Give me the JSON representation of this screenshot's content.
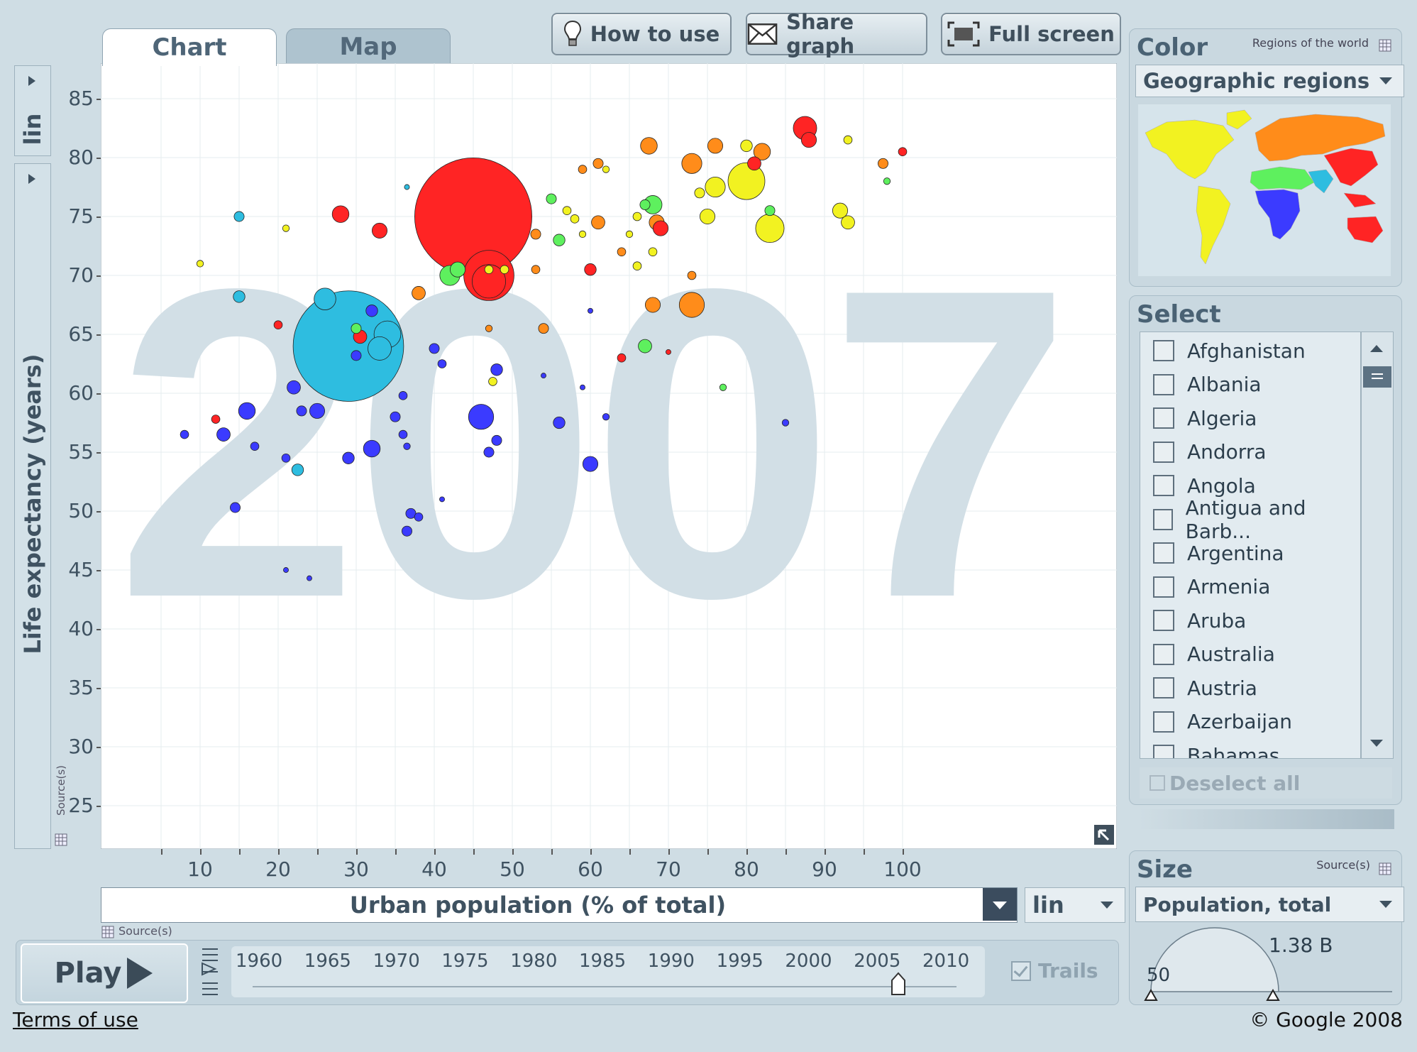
{
  "toolbar": {
    "how_to_use": "How to use",
    "share_graph": "Share graph",
    "full_screen": "Full screen"
  },
  "tabs": [
    {
      "label": "Chart",
      "active": true
    },
    {
      "label": "Map",
      "active": false
    }
  ],
  "y_axis": {
    "scale": "lin",
    "label": "Life expectancy (years)",
    "source_label": "Source(s)"
  },
  "x_axis": {
    "label": "Urban population (% of total)",
    "scale": "lin",
    "source_label": "Source(s)"
  },
  "year_watermark": "2007",
  "play": {
    "label": "Play",
    "years": [
      "1960",
      "1965",
      "1970",
      "1975",
      "1980",
      "1985",
      "1990",
      "1995",
      "2000",
      "2005",
      "2010"
    ],
    "current_year": 2007,
    "trails_label": "Trails"
  },
  "color_panel": {
    "title": "Color",
    "subtitle": "Regions of the world",
    "selected": "Geographic regions",
    "region_colors": {
      "americas": "#f2f221",
      "europe_central_asia": "#ff8c1a",
      "sub_saharan_africa": "#3b3bff",
      "middle_east_north_africa": "#5ef05e",
      "south_asia": "#2ebde0",
      "east_asia_pacific": "#ff2424"
    }
  },
  "select_panel": {
    "title": "Select",
    "countries": [
      "Afghanistan",
      "Albania",
      "Algeria",
      "Andorra",
      "Angola",
      "Antigua and Barb...",
      "Argentina",
      "Armenia",
      "Aruba",
      "Australia",
      "Austria",
      "Azerbaijan",
      "Bahamas"
    ],
    "deselect_all": "Deselect all"
  },
  "size_panel": {
    "title": "Size",
    "source_label": "Source(s)",
    "selected": "Population, total",
    "max_label": "1.38 B",
    "min_label": "50"
  },
  "footer": {
    "terms": "Terms of use",
    "copyright": "© Google 2008"
  },
  "chart_data": {
    "type": "scatter",
    "title": "",
    "xlabel": "Urban population (% of total)",
    "ylabel": "Life expectancy (years)",
    "xlim": [
      0,
      100
    ],
    "ylim": [
      22,
      87
    ],
    "x_ticks": [
      10,
      20,
      30,
      40,
      50,
      60,
      70,
      80,
      90,
      100
    ],
    "y_ticks": [
      25,
      30,
      35,
      40,
      45,
      50,
      55,
      60,
      65,
      70,
      75,
      80,
      85
    ],
    "grid": true,
    "size_variable": "Population, total",
    "points": [
      {
        "x": 45,
        "y": 75,
        "r": 70,
        "region": "east_asia_pacific"
      },
      {
        "x": 29,
        "y": 64,
        "r": 66,
        "region": "south_asia"
      },
      {
        "x": 47,
        "y": 69.5,
        "r": 20,
        "region": "east_asia_pacific"
      },
      {
        "x": 47,
        "y": 70,
        "r": 30,
        "region": "east_asia_pacific"
      },
      {
        "x": 33,
        "y": 63.8,
        "r": 14,
        "region": "south_asia"
      },
      {
        "x": 26,
        "y": 68,
        "r": 13,
        "region": "south_asia"
      },
      {
        "x": 28,
        "y": 75.2,
        "r": 10,
        "region": "east_asia_pacific"
      },
      {
        "x": 33,
        "y": 73.8,
        "r": 9,
        "region": "east_asia_pacific"
      },
      {
        "x": 30,
        "y": 65.5,
        "r": 6,
        "region": "middle_east_north_africa"
      },
      {
        "x": 30.5,
        "y": 64.8,
        "r": 8,
        "region": "east_asia_pacific"
      },
      {
        "x": 30,
        "y": 63.2,
        "r": 6,
        "region": "sub_saharan_africa"
      },
      {
        "x": 15,
        "y": 75,
        "r": 6,
        "region": "south_asia"
      },
      {
        "x": 15,
        "y": 68.2,
        "r": 7,
        "region": "south_asia"
      },
      {
        "x": 20,
        "y": 65.8,
        "r": 5,
        "region": "east_asia_pacific"
      },
      {
        "x": 32,
        "y": 67,
        "r": 7,
        "region": "sub_saharan_africa"
      },
      {
        "x": 16,
        "y": 58.5,
        "r": 10,
        "region": "sub_saharan_africa"
      },
      {
        "x": 13,
        "y": 56.5,
        "r": 8,
        "region": "sub_saharan_africa"
      },
      {
        "x": 22,
        "y": 60.5,
        "r": 8,
        "region": "sub_saharan_africa"
      },
      {
        "x": 25,
        "y": 58.5,
        "r": 9,
        "region": "sub_saharan_africa"
      },
      {
        "x": 23,
        "y": 58.5,
        "r": 6,
        "region": "sub_saharan_africa"
      },
      {
        "x": 8,
        "y": 56.5,
        "r": 5,
        "region": "sub_saharan_africa"
      },
      {
        "x": 17,
        "y": 55.5,
        "r": 5,
        "region": "sub_saharan_africa"
      },
      {
        "x": 21,
        "y": 54.5,
        "r": 5,
        "region": "sub_saharan_africa"
      },
      {
        "x": 22.5,
        "y": 53.5,
        "r": 7,
        "region": "south_asia"
      },
      {
        "x": 14.5,
        "y": 50.3,
        "r": 6,
        "region": "sub_saharan_africa"
      },
      {
        "x": 21,
        "y": 45,
        "r": 3,
        "region": "sub_saharan_africa"
      },
      {
        "x": 24,
        "y": 44.3,
        "r": 3,
        "region": "sub_saharan_africa"
      },
      {
        "x": 12,
        "y": 57.8,
        "r": 5,
        "region": "east_asia_pacific"
      },
      {
        "x": 34,
        "y": 65,
        "r": 16,
        "region": "south_asia"
      },
      {
        "x": 38,
        "y": 68.5,
        "r": 8,
        "region": "europe_central_asia"
      },
      {
        "x": 32,
        "y": 55.3,
        "r": 10,
        "region": "sub_saharan_africa"
      },
      {
        "x": 29,
        "y": 54.5,
        "r": 7,
        "region": "sub_saharan_africa"
      },
      {
        "x": 35,
        "y": 58,
        "r": 6,
        "region": "sub_saharan_africa"
      },
      {
        "x": 36,
        "y": 56.5,
        "r": 5,
        "region": "sub_saharan_africa"
      },
      {
        "x": 36.5,
        "y": 55.5,
        "r": 4,
        "region": "sub_saharan_africa"
      },
      {
        "x": 36,
        "y": 59.8,
        "r": 5,
        "region": "sub_saharan_africa"
      },
      {
        "x": 37,
        "y": 49.8,
        "r": 6,
        "region": "sub_saharan_africa"
      },
      {
        "x": 38,
        "y": 49.5,
        "r": 5,
        "region": "sub_saharan_africa"
      },
      {
        "x": 36.5,
        "y": 48.3,
        "r": 6,
        "region": "sub_saharan_africa"
      },
      {
        "x": 40,
        "y": 63.8,
        "r": 6,
        "region": "sub_saharan_africa"
      },
      {
        "x": 41,
        "y": 62.5,
        "r": 5,
        "region": "sub_saharan_africa"
      },
      {
        "x": 46,
        "y": 58,
        "r": 15,
        "region": "sub_saharan_africa"
      },
      {
        "x": 48,
        "y": 62,
        "r": 7,
        "region": "sub_saharan_africa"
      },
      {
        "x": 47,
        "y": 55,
        "r": 6,
        "region": "sub_saharan_africa"
      },
      {
        "x": 48,
        "y": 56,
        "r": 6,
        "region": "sub_saharan_africa"
      },
      {
        "x": 56,
        "y": 57.5,
        "r": 7,
        "region": "sub_saharan_africa"
      },
      {
        "x": 60,
        "y": 54,
        "r": 9,
        "region": "sub_saharan_africa"
      },
      {
        "x": 41,
        "y": 51,
        "r": 3,
        "region": "sub_saharan_africa"
      },
      {
        "x": 42,
        "y": 70,
        "r": 12,
        "region": "middle_east_north_africa"
      },
      {
        "x": 43,
        "y": 70.5,
        "r": 9,
        "region": "middle_east_north_africa"
      },
      {
        "x": 47,
        "y": 70.5,
        "r": 5,
        "region": "americas"
      },
      {
        "x": 49,
        "y": 70.5,
        "r": 5,
        "region": "americas"
      },
      {
        "x": 47.5,
        "y": 61,
        "r": 5,
        "region": "americas"
      },
      {
        "x": 47,
        "y": 65.5,
        "r": 4,
        "region": "europe_central_asia"
      },
      {
        "x": 53,
        "y": 73.5,
        "r": 6,
        "region": "europe_central_asia"
      },
      {
        "x": 53,
        "y": 70.5,
        "r": 5,
        "region": "europe_central_asia"
      },
      {
        "x": 54,
        "y": 65.5,
        "r": 6,
        "region": "europe_central_asia"
      },
      {
        "x": 56,
        "y": 73,
        "r": 7,
        "region": "middle_east_north_africa"
      },
      {
        "x": 55,
        "y": 76.5,
        "r": 6,
        "region": "middle_east_north_africa"
      },
      {
        "x": 57,
        "y": 75.5,
        "r": 5,
        "region": "americas"
      },
      {
        "x": 58,
        "y": 74.8,
        "r": 5,
        "region": "americas"
      },
      {
        "x": 60,
        "y": 70.5,
        "r": 7,
        "region": "east_asia_pacific"
      },
      {
        "x": 61,
        "y": 74.5,
        "r": 8,
        "region": "europe_central_asia"
      },
      {
        "x": 59,
        "y": 73.5,
        "r": 4,
        "region": "americas"
      },
      {
        "x": 59,
        "y": 79,
        "r": 5,
        "region": "europe_central_asia"
      },
      {
        "x": 61,
        "y": 79.5,
        "r": 6,
        "region": "europe_central_asia"
      },
      {
        "x": 62,
        "y": 79,
        "r": 4,
        "region": "americas"
      },
      {
        "x": 64,
        "y": 72,
        "r": 5,
        "region": "europe_central_asia"
      },
      {
        "x": 65,
        "y": 73.5,
        "r": 4,
        "region": "americas"
      },
      {
        "x": 66,
        "y": 75,
        "r": 5,
        "region": "americas"
      },
      {
        "x": 66,
        "y": 70.8,
        "r": 5,
        "region": "americas"
      },
      {
        "x": 67,
        "y": 76,
        "r": 6,
        "region": "middle_east_north_africa"
      },
      {
        "x": 68,
        "y": 76,
        "r": 11,
        "region": "middle_east_north_africa"
      },
      {
        "x": 68.5,
        "y": 74.5,
        "r": 9,
        "region": "europe_central_asia"
      },
      {
        "x": 69,
        "y": 74,
        "r": 9,
        "region": "east_asia_pacific"
      },
      {
        "x": 68,
        "y": 72,
        "r": 5,
        "region": "americas"
      },
      {
        "x": 68,
        "y": 67.5,
        "r": 9,
        "region": "europe_central_asia"
      },
      {
        "x": 67,
        "y": 64,
        "r": 8,
        "region": "middle_east_north_africa"
      },
      {
        "x": 67.5,
        "y": 81,
        "r": 10,
        "region": "europe_central_asia"
      },
      {
        "x": 73,
        "y": 67.5,
        "r": 15,
        "region": "europe_central_asia"
      },
      {
        "x": 73,
        "y": 79.5,
        "r": 12,
        "region": "europe_central_asia"
      },
      {
        "x": 73,
        "y": 70,
        "r": 5,
        "region": "europe_central_asia"
      },
      {
        "x": 75,
        "y": 75,
        "r": 9,
        "region": "americas"
      },
      {
        "x": 76,
        "y": 77.5,
        "r": 12,
        "region": "americas"
      },
      {
        "x": 74,
        "y": 77,
        "r": 6,
        "region": "americas"
      },
      {
        "x": 76,
        "y": 81,
        "r": 9,
        "region": "europe_central_asia"
      },
      {
        "x": 80,
        "y": 78,
        "r": 22,
        "region": "americas"
      },
      {
        "x": 80,
        "y": 81,
        "r": 7,
        "region": "americas"
      },
      {
        "x": 81,
        "y": 79.5,
        "r": 8,
        "region": "east_asia_pacific"
      },
      {
        "x": 82,
        "y": 80.5,
        "r": 10,
        "region": "europe_central_asia"
      },
      {
        "x": 83,
        "y": 74,
        "r": 17,
        "region": "americas"
      },
      {
        "x": 83,
        "y": 75.5,
        "r": 6,
        "region": "middle_east_north_africa"
      },
      {
        "x": 87.5,
        "y": 82.5,
        "r": 14,
        "region": "east_asia_pacific"
      },
      {
        "x": 88,
        "y": 81.5,
        "r": 9,
        "region": "east_asia_pacific"
      },
      {
        "x": 92,
        "y": 75.5,
        "r": 9,
        "region": "americas"
      },
      {
        "x": 93,
        "y": 74.5,
        "r": 8,
        "region": "americas"
      },
      {
        "x": 93,
        "y": 81.5,
        "r": 5,
        "region": "americas"
      },
      {
        "x": 97.5,
        "y": 79.5,
        "r": 6,
        "region": "europe_central_asia"
      },
      {
        "x": 98,
        "y": 78,
        "r": 4,
        "region": "middle_east_north_africa"
      },
      {
        "x": 100,
        "y": 80.5,
        "r": 5,
        "region": "east_asia_pacific"
      },
      {
        "x": 60,
        "y": 67,
        "r": 3,
        "region": "sub_saharan_africa"
      },
      {
        "x": 64,
        "y": 63,
        "r": 5,
        "region": "east_asia_pacific"
      },
      {
        "x": 70,
        "y": 63.5,
        "r": 3,
        "region": "east_asia_pacific"
      },
      {
        "x": 77,
        "y": 60.5,
        "r": 4,
        "region": "middle_east_north_africa"
      },
      {
        "x": 85,
        "y": 57.5,
        "r": 4,
        "region": "sub_saharan_africa"
      },
      {
        "x": 10,
        "y": 71,
        "r": 4,
        "region": "americas"
      },
      {
        "x": 21,
        "y": 74,
        "r": 4,
        "region": "americas"
      },
      {
        "x": 36.5,
        "y": 77.5,
        "r": 3,
        "region": "south_asia"
      },
      {
        "x": 54,
        "y": 61.5,
        "r": 3,
        "region": "sub_saharan_africa"
      },
      {
        "x": 59,
        "y": 60.5,
        "r": 3,
        "region": "sub_saharan_africa"
      },
      {
        "x": 62,
        "y": 58,
        "r": 4,
        "region": "sub_saharan_africa"
      }
    ]
  }
}
